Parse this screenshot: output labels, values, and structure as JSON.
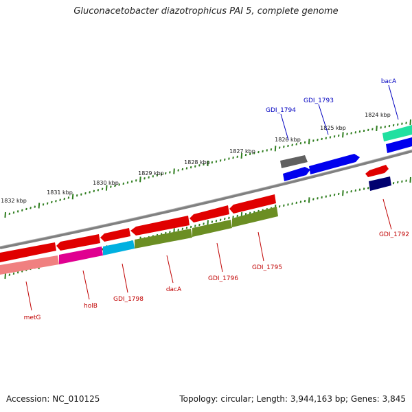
{
  "title": "Gluconacetobacter diazotrophicus PAI 5, complete genome",
  "accession": "Accession: NC_010125",
  "topology": "Topology: circular; Length: 3,944,163 bp; Genes: 3,845",
  "kbp_labels": [
    "1832 kbp",
    "1831 kbp",
    "1830 kbp",
    "1829 kbp",
    "1828 kbp",
    "1827 kbp",
    "1826 kbp",
    "1825 kbp",
    "1824 kbp"
  ],
  "gene_labels_top": [
    "GDI_1794",
    "GDI_1793",
    "bacA"
  ],
  "gene_labels_bottom": [
    "metG",
    "holB",
    "GDI_1798",
    "dacA",
    "GDI_1796",
    "GDI_1795",
    "GDI_1792"
  ],
  "colors": {
    "backbone": "#808080",
    "tick": "#2e7d1e",
    "forward_label": "#0000c0",
    "reverse_label": "#c00000",
    "red": "#e00000",
    "pink": "#f08080",
    "magenta": "#e00090",
    "cyan": "#00b0e0",
    "olive": "#6b8e23",
    "gray": "#606060",
    "blue": "#0000ee",
    "navy": "#000070",
    "teal": "#20e0a0"
  }
}
